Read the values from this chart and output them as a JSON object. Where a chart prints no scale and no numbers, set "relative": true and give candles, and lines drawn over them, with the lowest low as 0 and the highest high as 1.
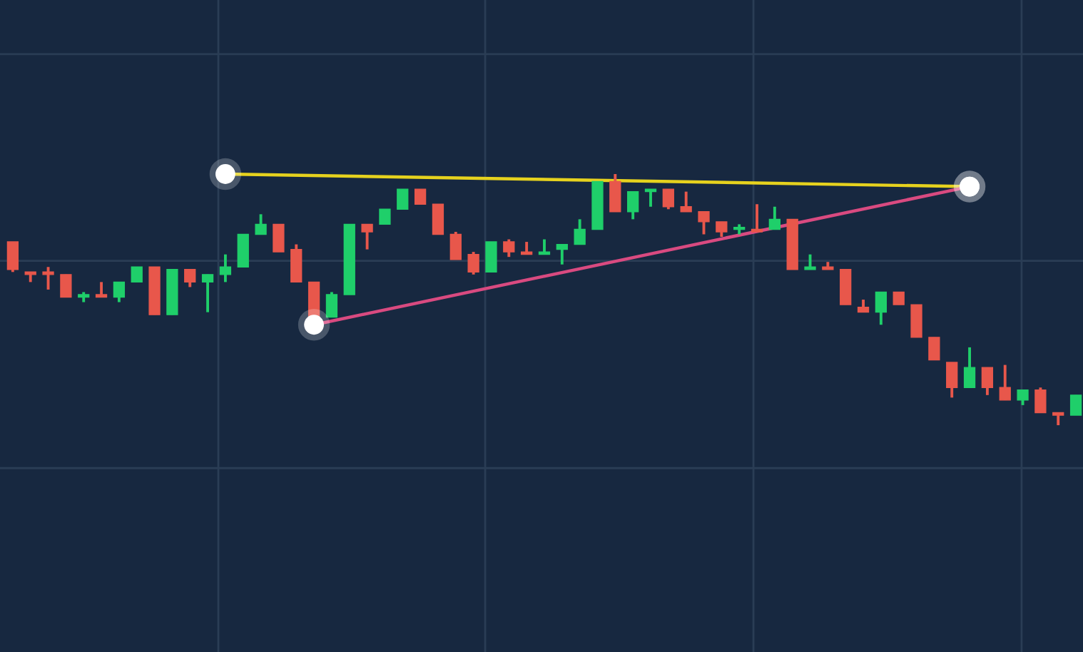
{
  "chart_data": {
    "type": "candlestick",
    "relative": true,
    "grid": true,
    "categories": [
      null,
      null,
      null,
      null,
      null,
      null,
      null,
      null,
      null,
      null,
      null,
      null,
      null,
      null,
      null,
      null,
      null,
      null,
      null,
      null,
      null,
      null,
      null,
      null,
      null,
      null,
      null,
      null,
      null,
      null,
      null,
      null,
      null,
      null,
      null,
      null,
      null,
      null,
      null,
      null,
      null,
      null,
      null,
      null,
      null,
      null,
      null,
      null,
      null,
      null,
      null,
      null,
      null,
      null,
      null,
      null,
      null,
      null,
      null,
      null,
      null
    ],
    "ohlc": [
      [
        0.73,
        0.73,
        0.61,
        0.62
      ],
      [
        0.61,
        0.61,
        0.57,
        0.6
      ],
      [
        0.61,
        0.63,
        0.54,
        0.6
      ],
      [
        0.6,
        0.6,
        0.51,
        0.51
      ],
      [
        0.51,
        0.53,
        0.49,
        0.52
      ],
      [
        0.52,
        0.57,
        0.51,
        0.51
      ],
      [
        0.51,
        0.57,
        0.49,
        0.57
      ],
      [
        0.57,
        0.63,
        0.57,
        0.63
      ],
      [
        0.63,
        0.63,
        0.44,
        0.44
      ],
      [
        0.44,
        0.62,
        0.44,
        0.62
      ],
      [
        0.62,
        0.62,
        0.55,
        0.57
      ],
      [
        0.57,
        0.6,
        0.45,
        0.6
      ],
      [
        0.6,
        0.68,
        0.57,
        0.63
      ],
      [
        0.63,
        0.76,
        0.63,
        0.76
      ],
      [
        0.76,
        0.84,
        0.76,
        0.8
      ],
      [
        0.8,
        0.8,
        0.69,
        0.69
      ],
      [
        0.7,
        0.72,
        0.57,
        0.57
      ],
      [
        0.57,
        0.57,
        0.43,
        0.43
      ],
      [
        0.43,
        0.53,
        0.43,
        0.52
      ],
      [
        0.52,
        0.8,
        0.52,
        0.8
      ],
      [
        0.8,
        0.8,
        0.7,
        0.77
      ],
      [
        0.8,
        0.86,
        0.8,
        0.86
      ],
      [
        0.86,
        0.94,
        0.86,
        0.94
      ],
      [
        0.94,
        0.94,
        0.88,
        0.88
      ],
      [
        0.88,
        0.88,
        0.76,
        0.76
      ],
      [
        0.76,
        0.77,
        0.66,
        0.66
      ],
      [
        0.68,
        0.69,
        0.6,
        0.61
      ],
      [
        0.61,
        0.73,
        0.61,
        0.73
      ],
      [
        0.73,
        0.74,
        0.67,
        0.69
      ],
      [
        0.69,
        0.73,
        0.68,
        0.68
      ],
      [
        0.68,
        0.74,
        0.68,
        0.69
      ],
      [
        0.7,
        0.72,
        0.64,
        0.72
      ],
      [
        0.72,
        0.82,
        0.72,
        0.78
      ],
      [
        0.78,
        0.97,
        0.78,
        0.97
      ],
      [
        0.97,
        1.0,
        0.85,
        0.85
      ],
      [
        0.85,
        0.93,
        0.82,
        0.93
      ],
      [
        0.93,
        0.94,
        0.87,
        0.94
      ],
      [
        0.94,
        0.94,
        0.86,
        0.87
      ],
      [
        0.87,
        0.93,
        0.85,
        0.85
      ],
      [
        0.85,
        0.85,
        0.76,
        0.81
      ],
      [
        0.81,
        0.81,
        0.75,
        0.77
      ],
      [
        0.78,
        0.8,
        0.76,
        0.78
      ],
      [
        0.78,
        0.88,
        0.77,
        0.77
      ],
      [
        0.78,
        0.87,
        0.78,
        0.82
      ],
      [
        0.82,
        0.82,
        0.62,
        0.62
      ],
      [
        0.62,
        0.68,
        0.62,
        0.63
      ],
      [
        0.63,
        0.65,
        0.62,
        0.62
      ],
      [
        0.62,
        0.62,
        0.48,
        0.48
      ],
      [
        0.47,
        0.5,
        0.45,
        0.45
      ],
      [
        0.45,
        0.53,
        0.4,
        0.53
      ],
      [
        0.53,
        0.53,
        0.48,
        0.48
      ],
      [
        0.48,
        0.48,
        0.35,
        0.35
      ],
      [
        0.35,
        0.35,
        0.26,
        0.26
      ],
      [
        0.25,
        0.25,
        0.11,
        0.15
      ],
      [
        0.15,
        0.31,
        0.15,
        0.23
      ],
      [
        0.23,
        0.23,
        0.12,
        0.15
      ],
      [
        0.15,
        0.24,
        0.1,
        0.1
      ],
      [
        0.1,
        0.14,
        0.08,
        0.14
      ],
      [
        0.14,
        0.15,
        0.05,
        0.05
      ],
      [
        0.05,
        0.05,
        0.0,
        0.04
      ],
      [
        0.04,
        0.12,
        0.04,
        0.12
      ]
    ],
    "colors": [
      "#e8574b",
      "#e8574b",
      "#e8574b",
      "#e8574b",
      "#1fcf6a",
      "#e8574b",
      "#1fcf6a",
      "#1fcf6a",
      "#e8574b",
      "#1fcf6a",
      "#e8574b",
      "#1fcf6a",
      "#1fcf6a",
      "#1fcf6a",
      "#1fcf6a",
      "#e8574b",
      "#e8574b",
      "#e8574b",
      "#1fcf6a",
      "#1fcf6a",
      "#e8574b",
      "#1fcf6a",
      "#1fcf6a",
      "#e8574b",
      "#e8574b",
      "#e8574b",
      "#e8574b",
      "#1fcf6a",
      "#e8574b",
      "#e8574b",
      "#1fcf6a",
      "#1fcf6a",
      "#1fcf6a",
      "#1fcf6a",
      "#e8574b",
      "#1fcf6a",
      "#1fcf6a",
      "#e8574b",
      "#e8574b",
      "#e8574b",
      "#e8574b",
      "#1fcf6a",
      "#e8574b",
      "#1fcf6a",
      "#e8574b",
      "#1fcf6a",
      "#e8574b",
      "#e8574b",
      "#e8574b",
      "#1fcf6a",
      "#e8574b",
      "#e8574b",
      "#e8574b",
      "#e8574b",
      "#1fcf6a",
      "#e8574b",
      "#e8574b",
      "#1fcf6a",
      "#e8574b",
      "#e8574b",
      "#1fcf6a"
    ],
    "series": [
      {
        "type": "line",
        "color": "#e6d21e",
        "marker": "circle",
        "values": [
          null,
          null,
          null,
          null,
          null,
          null,
          null,
          null,
          null,
          null,
          null,
          null,
          1.0,
          null,
          null,
          null,
          null,
          null,
          null,
          null,
          null,
          null,
          null,
          null,
          null,
          null,
          null,
          null,
          null,
          null,
          null,
          null,
          null,
          null,
          null,
          null,
          null,
          null,
          null,
          null,
          null,
          null,
          null,
          null,
          null,
          null,
          null,
          null,
          null,
          null,
          null,
          null,
          null,
          null,
          0.95,
          null,
          null,
          null,
          null,
          null,
          null
        ]
      },
      {
        "type": "line",
        "color": "#d94a80",
        "marker": "circle",
        "values": [
          null,
          null,
          null,
          null,
          null,
          null,
          null,
          null,
          null,
          null,
          null,
          null,
          null,
          null,
          null,
          null,
          null,
          0.4,
          null,
          null,
          null,
          null,
          null,
          null,
          null,
          null,
          null,
          null,
          null,
          null,
          null,
          null,
          null,
          null,
          null,
          null,
          null,
          null,
          null,
          null,
          null,
          null,
          null,
          null,
          null,
          null,
          null,
          null,
          null,
          null,
          null,
          null,
          null,
          null,
          0.95,
          null,
          null,
          null,
          null,
          null,
          null
        ]
      }
    ]
  }
}
